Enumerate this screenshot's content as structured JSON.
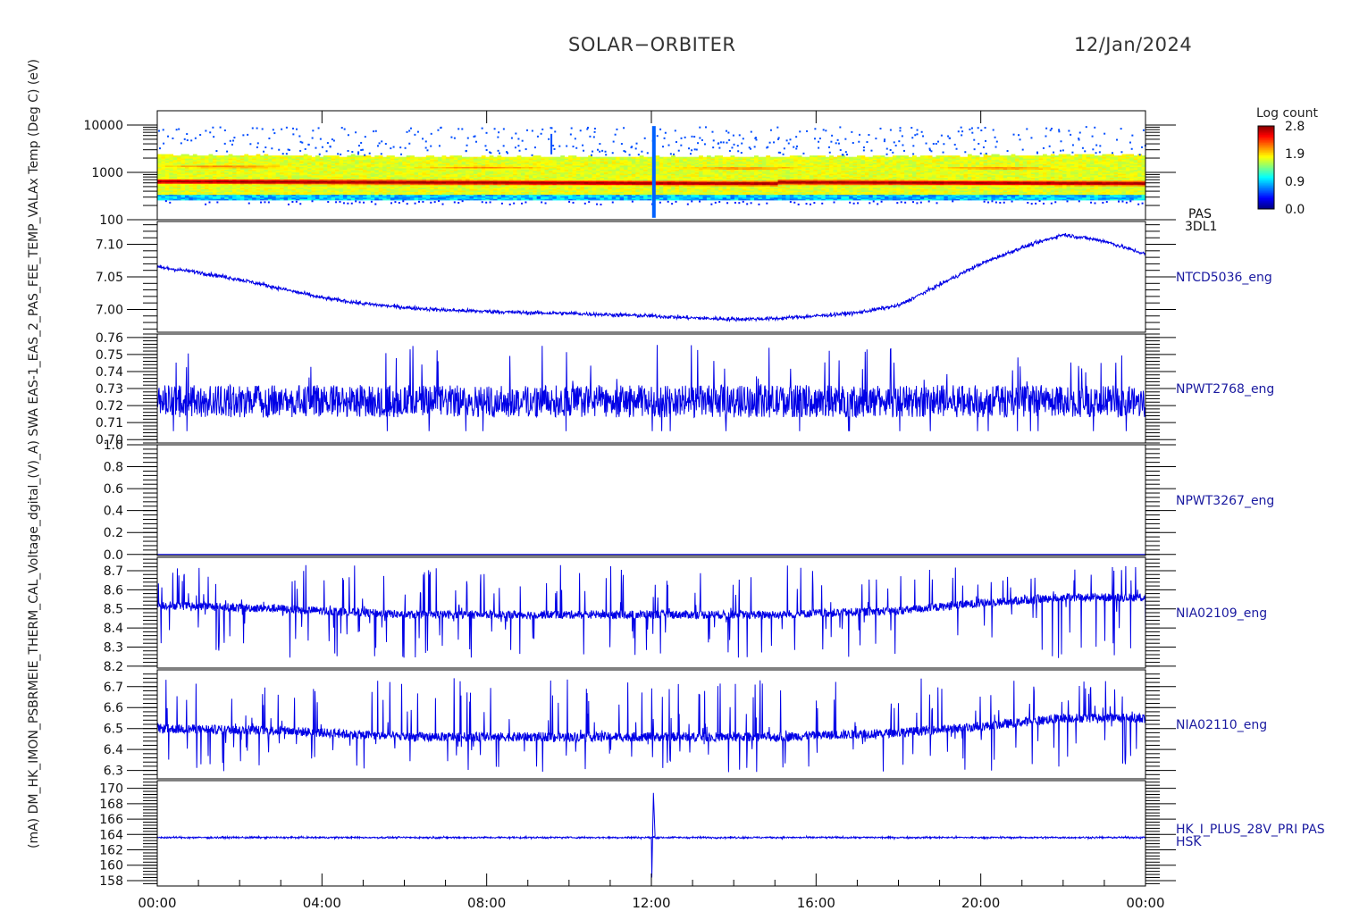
{
  "header": {
    "title": "SOLAR−ORBITER",
    "date": "12/Jan/2024"
  },
  "colorbar": {
    "title": "Log count",
    "ticks": [
      "2.8",
      "1.9",
      "0.9",
      "0.0"
    ],
    "range": [
      0.0,
      2.8
    ]
  },
  "y_axis_overlay_text": "(mA)   DM_HK_IMON_PSBRMEIE_THERM_CAL_Voltage_dgital_(V)_A) SWA EAS-1_EAS_2_PAS_FEE_TEMP_VALAx Temp (Deg C) (eV)",
  "chart_data": [
    {
      "type": "heatmap",
      "panel": "PAS energy spectrogram",
      "right_label": [
        "PAS",
        "3DL1"
      ],
      "yscale": "log",
      "ylim": [
        100,
        20000
      ],
      "ytick_labels": [
        "10000",
        "1000",
        "100"
      ],
      "ytick_values": [
        10000,
        1000,
        100
      ],
      "color_scale": "Log count",
      "bands": [
        {
          "name": "proton peak",
          "energy_start": 650,
          "energy_end": 550
        },
        {
          "name": "alpha peak",
          "energy_start": 1350,
          "energy_end": 1150
        }
      ]
    },
    {
      "type": "line",
      "right_label": "NTCD5036_eng",
      "ylim": [
        6.965,
        7.135
      ],
      "ytick_labels": [
        "7.10",
        "7.05",
        "7.00"
      ],
      "ytick_values": [
        7.1,
        7.05,
        7.0
      ],
      "x_hours": [
        0,
        1,
        2,
        3,
        4,
        5,
        6,
        7,
        8,
        9,
        10,
        11,
        12,
        13,
        14,
        15,
        16,
        17,
        18,
        19,
        20,
        21,
        22,
        23,
        24
      ],
      "values": [
        7.065,
        7.057,
        7.046,
        7.032,
        7.018,
        7.009,
        7.003,
        6.999,
        6.997,
        6.995,
        6.994,
        6.992,
        6.99,
        6.987,
        6.985,
        6.986,
        6.99,
        6.995,
        7.006,
        7.038,
        7.07,
        7.095,
        7.115,
        7.105,
        7.085
      ],
      "noise": 0.003,
      "color": "#0000e6"
    },
    {
      "type": "line",
      "right_label": "NPWT2768_eng",
      "ylim": [
        0.698,
        0.762
      ],
      "ytick_labels": [
        "0.76",
        "0.75",
        "0.74",
        "0.73",
        "0.72",
        "0.71",
        "0.70"
      ],
      "ytick_values": [
        0.76,
        0.75,
        0.74,
        0.73,
        0.72,
        0.71,
        0.7
      ],
      "mean": 0.7225,
      "amplitude": 0.0095,
      "min_value": 0.705,
      "max_value": 0.756,
      "color": "#0000e6"
    },
    {
      "type": "line",
      "right_label": "NPWT3267_eng",
      "ylim": [
        -0.01,
        1.0
      ],
      "ytick_labels": [
        "1.0",
        "0.8",
        "0.6",
        "0.4",
        "0.2",
        "0.0"
      ],
      "ytick_values": [
        1.0,
        0.8,
        0.6,
        0.4,
        0.2,
        0.0
      ],
      "constant_value": 0.0,
      "color": "#0000e6"
    },
    {
      "type": "line",
      "right_label": "NIA02109_eng",
      "ylim": [
        8.19,
        8.77
      ],
      "ytick_labels": [
        "8.7",
        "8.6",
        "8.5",
        "8.4",
        "8.3",
        "8.2"
      ],
      "ytick_values": [
        8.7,
        8.6,
        8.5,
        8.4,
        8.3,
        8.2
      ],
      "x_hours": [
        0,
        3,
        6,
        9,
        12,
        15,
        18,
        20,
        22,
        24
      ],
      "baseline": [
        8.52,
        8.5,
        8.47,
        8.47,
        8.47,
        8.47,
        8.49,
        8.53,
        8.56,
        8.56
      ],
      "spike_up_max": 8.73,
      "spike_down_min": 8.24,
      "color": "#0000e6"
    },
    {
      "type": "line",
      "right_label": "NIA02110_eng",
      "ylim": [
        6.26,
        6.78
      ],
      "ytick_labels": [
        "6.7",
        "6.6",
        "6.5",
        "6.4",
        "6.3"
      ],
      "ytick_values": [
        6.7,
        6.6,
        6.5,
        6.4,
        6.3
      ],
      "x_hours": [
        0,
        3,
        6,
        9,
        12,
        15,
        18,
        20,
        22,
        24
      ],
      "baseline": [
        6.5,
        6.49,
        6.46,
        6.46,
        6.46,
        6.46,
        6.48,
        6.51,
        6.55,
        6.55
      ],
      "spike_up_max": 6.74,
      "spike_down_min": 6.29,
      "color": "#0000e6"
    },
    {
      "type": "line",
      "right_label": [
        "HK_I_PLUS_28V_PRI PAS",
        "HSK"
      ],
      "ylim": [
        157.3,
        171.0
      ],
      "ytick_labels": [
        "170",
        "168",
        "166",
        "164",
        "162",
        "160",
        "158"
      ],
      "ytick_values": [
        170,
        168,
        166,
        164,
        162,
        160,
        158
      ],
      "mean": 163.6,
      "noise": 0.12,
      "transient": {
        "hour": 12.0,
        "max": 169.4,
        "min": 158.4
      },
      "color": "#0000e6"
    }
  ],
  "x_axis": {
    "tick_labels": [
      "00:00",
      "04:00",
      "08:00",
      "12:00",
      "16:00",
      "20:00",
      "00:00"
    ],
    "tick_hours": [
      0,
      4,
      8,
      12,
      16,
      20,
      24
    ],
    "range_hours": [
      0,
      24
    ]
  }
}
